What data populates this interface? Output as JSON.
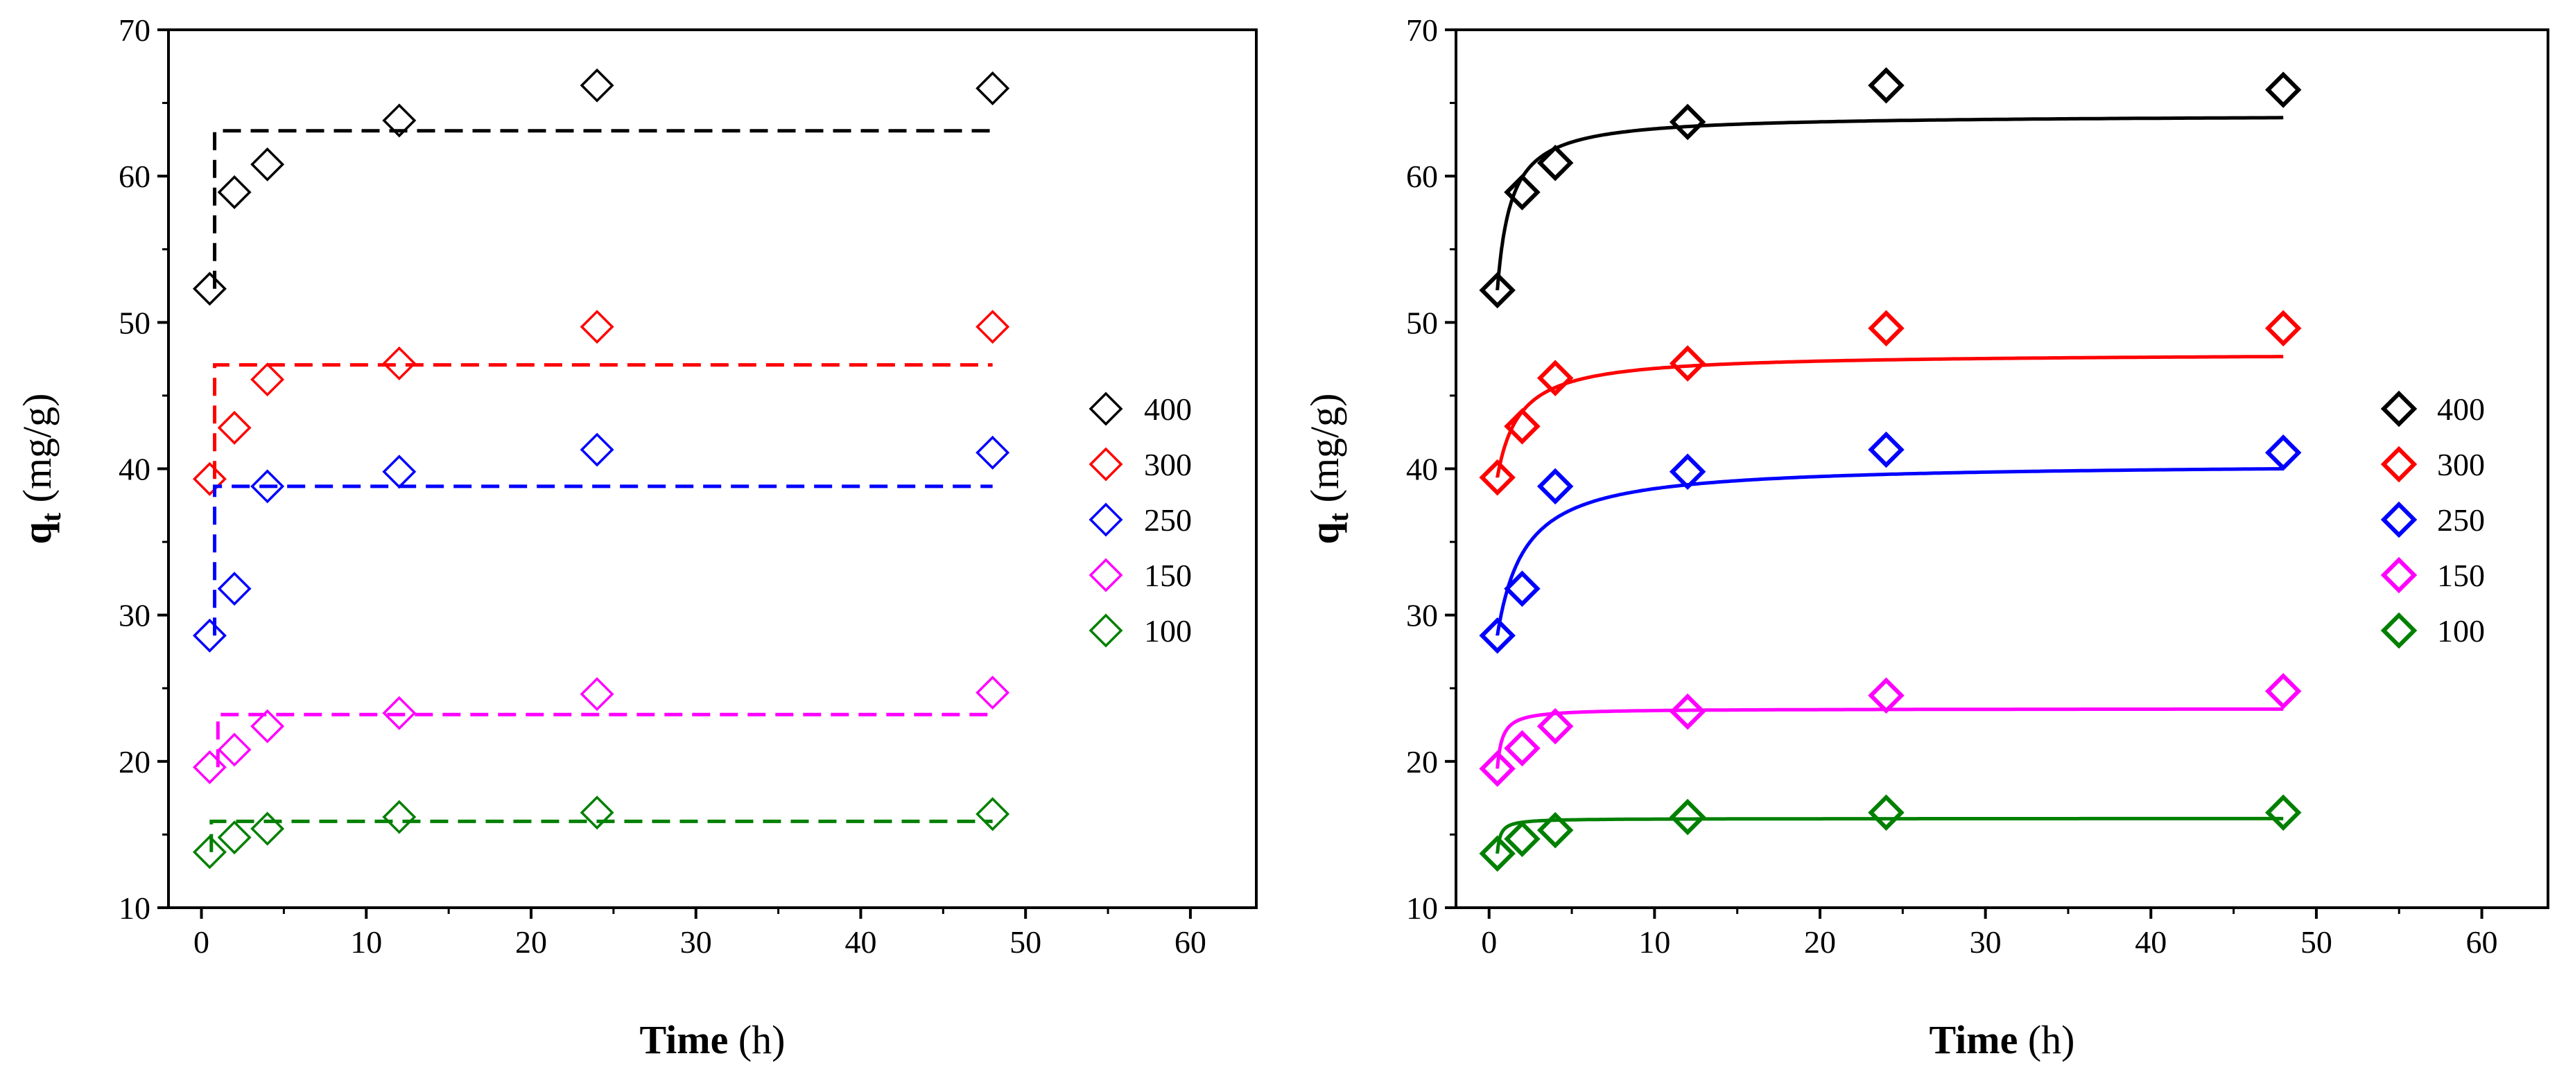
{
  "chart_data": [
    {
      "type": "scatter",
      "panel": "left",
      "fit_style": "dashed",
      "xlabel": "Time",
      "xlabel_unit": "(h)",
      "ylabel": "q",
      "ylabel_sub": "t",
      "ylabel_unit": "(mg/g)",
      "xlim": [
        -2,
        64
      ],
      "ylim": [
        10,
        70
      ],
      "xticks": [
        0,
        10,
        20,
        30,
        40,
        50,
        60
      ],
      "yticks": [
        10,
        20,
        30,
        40,
        50,
        60,
        70
      ],
      "legend_position": "center-right",
      "x": [
        0.5,
        2,
        4,
        12,
        24,
        48
      ],
      "series": [
        {
          "name": "400",
          "color": "#000000",
          "values": [
            52.3,
            58.9,
            60.8,
            63.8,
            66.2,
            66.0
          ],
          "fit_qe": 63.1,
          "fit_t0": 0.8
        },
        {
          "name": "300",
          "color": "#ff0000",
          "values": [
            39.3,
            42.8,
            46.1,
            47.2,
            49.7,
            49.7
          ],
          "fit_qe": 47.1,
          "fit_t0": 0.8
        },
        {
          "name": "250",
          "color": "#0000ff",
          "values": [
            28.6,
            31.8,
            38.8,
            39.8,
            41.3,
            41.1
          ],
          "fit_qe": 38.8,
          "fit_t0": 0.8
        },
        {
          "name": "150",
          "color": "#ff00ff",
          "values": [
            19.6,
            20.8,
            22.4,
            23.3,
            24.6,
            24.7
          ],
          "fit_qe": 23.2,
          "fit_t0": 1.0
        },
        {
          "name": "100",
          "color": "#008000",
          "values": [
            13.8,
            14.8,
            15.4,
            16.2,
            16.5,
            16.4
          ],
          "fit_qe": 15.9,
          "fit_t0": 0.6
        }
      ]
    },
    {
      "type": "scatter",
      "panel": "right",
      "fit_style": "solid",
      "xlabel": "Time",
      "xlabel_unit": "(h)",
      "ylabel": "q",
      "ylabel_sub": "t",
      "ylabel_unit": "(mg/g)",
      "xlim": [
        -2,
        64
      ],
      "ylim": [
        10,
        70
      ],
      "xticks": [
        0,
        10,
        20,
        30,
        40,
        50,
        60
      ],
      "yticks": [
        10,
        20,
        30,
        40,
        50,
        60,
        70
      ],
      "legend_position": "center-right",
      "x": [
        0.5,
        2,
        4,
        12,
        24,
        48
      ],
      "series": [
        {
          "name": "400",
          "color": "#000000",
          "values": [
            52.2,
            58.9,
            60.9,
            63.7,
            66.2,
            65.9
          ],
          "fit_qe": 64.2,
          "fit_k": 0.12
        },
        {
          "name": "300",
          "color": "#ff0000",
          "values": [
            39.4,
            42.9,
            46.2,
            47.2,
            49.6,
            49.6
          ],
          "fit_qe": 47.9,
          "fit_k": 0.075
        },
        {
          "name": "250",
          "color": "#0000ff",
          "values": [
            28.6,
            31.8,
            38.8,
            39.8,
            41.3,
            41.1
          ],
          "fit_qe": 40.4,
          "fit_k": 0.06
        },
        {
          "name": "150",
          "color": "#ff00ff",
          "values": [
            19.5,
            20.9,
            22.4,
            23.4,
            24.5,
            24.8
          ],
          "fit_qe": 23.6,
          "fit_k": 0.33
        },
        {
          "name": "100",
          "color": "#008000",
          "values": [
            13.7,
            14.7,
            15.3,
            16.2,
            16.5,
            16.5
          ],
          "fit_qe": 16.1,
          "fit_k": 0.55
        }
      ]
    }
  ]
}
